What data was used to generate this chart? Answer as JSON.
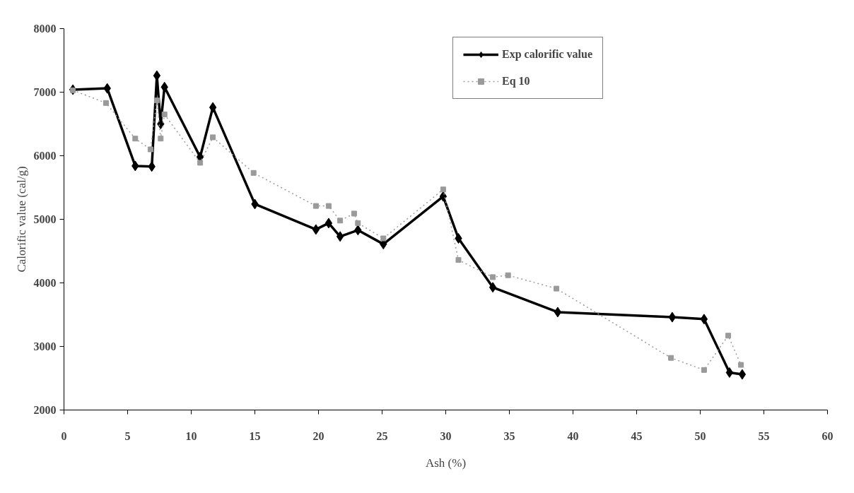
{
  "chart_data": {
    "type": "line",
    "xlabel": "Ash (%)",
    "ylabel": "Calorific value (cal/g)",
    "xlim": [
      0,
      60
    ],
    "xticks": [
      0,
      5,
      10,
      15,
      20,
      25,
      30,
      35,
      40,
      45,
      50,
      55,
      60
    ],
    "ylim": [
      2000,
      8000
    ],
    "yticks": [
      2000,
      3000,
      4000,
      5000,
      6000,
      7000,
      8000
    ],
    "grid": false,
    "legend": "top right",
    "series": [
      {
        "name": "Exp calorific value",
        "color": "#000000",
        "marker": "diamond",
        "line_style": "solid",
        "x": [
          0.7,
          3.4,
          5.6,
          6.9,
          7.3,
          7.6,
          7.9,
          10.7,
          11.7,
          15.0,
          19.8,
          20.8,
          21.7,
          23.1,
          25.1,
          29.8,
          31.0,
          33.7,
          38.8,
          47.8,
          50.3,
          52.3,
          53.3
        ],
        "values": [
          7040,
          7060,
          5840,
          5830,
          7260,
          6500,
          7080,
          5980,
          6760,
          5240,
          4840,
          4940,
          4730,
          4830,
          4610,
          5360,
          4700,
          3930,
          3540,
          3460,
          3430,
          2590,
          2560
        ]
      },
      {
        "name": "Eq 10",
        "color": "#9a9a9a",
        "marker": "square",
        "line_style": "dotted",
        "x": [
          0.7,
          3.3,
          5.6,
          6.8,
          7.3,
          7.6,
          7.9,
          10.7,
          11.7,
          14.9,
          19.8,
          20.8,
          21.7,
          22.8,
          23.1,
          25.1,
          29.8,
          31.0,
          33.7,
          34.9,
          38.7,
          47.7,
          50.3,
          52.2,
          53.2
        ],
        "values": [
          7030,
          6830,
          6270,
          6100,
          6870,
          6270,
          6650,
          5890,
          6290,
          5730,
          5210,
          5210,
          4980,
          5090,
          4940,
          4700,
          5470,
          4360,
          4090,
          4120,
          3910,
          2820,
          2630,
          3170,
          2710
        ]
      }
    ]
  }
}
